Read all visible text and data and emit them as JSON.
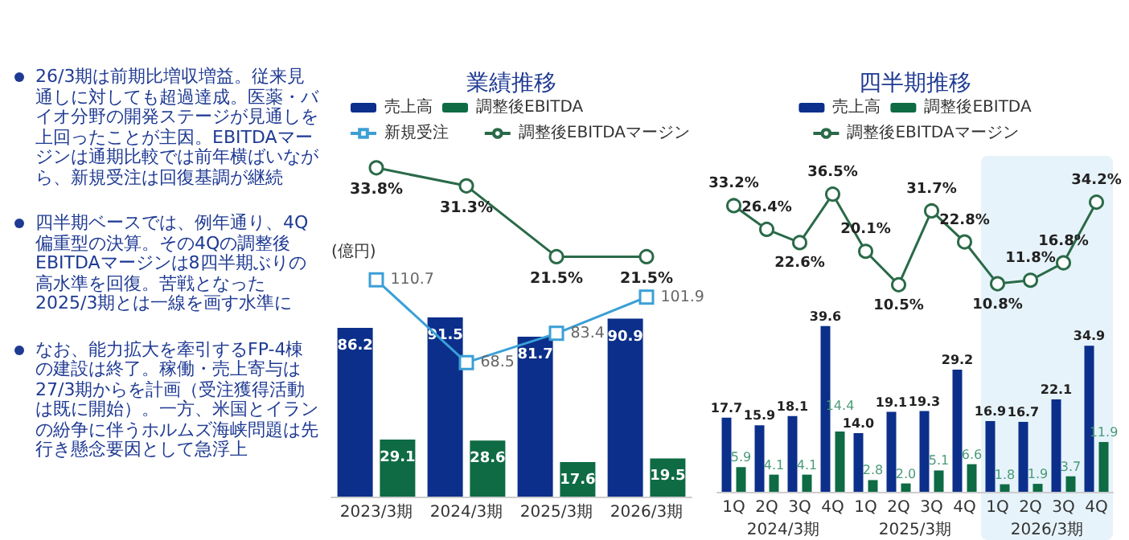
{
  "chart_data": [
    {
      "type": "other",
      "annotations": [
        "26/3期は前期比増収増益。従来見通しに対しても超過達成。医薬・バイオ分野の開発ステージが見通しを上回ったことが主因。EBITDAマージンは通期比較では前年横ばいながら、新規受注は回復基調が継続",
        "四半期ベースでは、例年通り、4Q偏重型の決算。その4Qの調整後EBITDAマージンは8四半期ぶりの高水準を回復。苦戦となった2025/3期とは一線を画す水準に",
        "なお、能力拡大を牽引するFP-4棟の建設は終了。稼働・売上寄与は27/3期からを計画（受注獲得活動は既に開始）。一方、米国とイランの紛争に伴うホルムズ海峡問題は先行き懸念要因として急浮上"
      ]
    },
    {
      "type": "line",
      "title": "業績推移",
      "categories": [
        null,
        null,
        null,
        null
      ],
      "series": [
        {
          "name": "調整後EBITDAマージン",
          "color": "#2a6a48",
          "marker": "circle",
          "values": [
            33.8,
            31.3,
            21.5,
            21.5
          ],
          "value_labels": [
            "33.8%",
            "31.3%",
            "21.5%",
            "21.5%"
          ]
        }
      ],
      "legend": "top right",
      "tick_labels": false
    },
    {
      "type": "bar",
      "ylabel": "(億円)",
      "categories": [
        "2023/3期",
        "2024/3期",
        "2025/3期",
        "2026/3期"
      ],
      "series": [
        {
          "name": "売上高",
          "type": "bar",
          "color": "#0b2f8a",
          "values": [
            86.2,
            91.5,
            81.7,
            90.9
          ]
        },
        {
          "name": "調整後EBITDA",
          "type": "bar",
          "color": "#0e6b44",
          "values": [
            29.1,
            28.6,
            17.6,
            19.5
          ]
        },
        {
          "name": "新規受注",
          "type": "line",
          "color": "#3b9fd6",
          "marker": "square",
          "values": [
            110.7,
            68.5,
            83.4,
            101.9
          ]
        }
      ],
      "data_labels": true,
      "legend": "top left",
      "tick_labels": "x"
    },
    {
      "type": "line",
      "title": "四半期推移",
      "categories": [
        null,
        null,
        null,
        null,
        null,
        null,
        null,
        null,
        null,
        null,
        null,
        null
      ],
      "series": [
        {
          "name": "調整後EBITDAマージン",
          "color": "#2a6a48",
          "marker": "circle",
          "values": [
            33.2,
            26.4,
            22.6,
            36.5,
            20.1,
            10.5,
            31.7,
            22.8,
            10.8,
            11.8,
            16.8,
            34.2
          ],
          "value_labels": [
            "33.2%",
            "26.4%",
            "22.6%",
            "36.5%",
            "20.1%",
            "10.5%",
            "31.7%",
            "22.8%",
            "10.8%",
            "11.8%",
            "16.8%",
            "34.2%"
          ]
        }
      ],
      "legend": "top",
      "tick_labels": false
    },
    {
      "type": "bar",
      "categories": [
        "1Q",
        "2Q",
        "3Q",
        "4Q",
        "1Q",
        "2Q",
        "3Q",
        "4Q",
        "1Q",
        "2Q",
        "3Q",
        "4Q"
      ],
      "annotations": [
        "2024/3期",
        "2025/3期",
        "2026/3期"
      ],
      "series": [
        {
          "name": "売上高",
          "color": "#0b2f8a",
          "values": [
            17.7,
            15.9,
            18.1,
            39.6,
            14.0,
            19.1,
            19.3,
            29.2,
            16.9,
            16.7,
            22.1,
            34.9
          ],
          "value_labels": [
            "17.7",
            "15.9",
            "18.1",
            "39.6",
            "14.0",
            "19.1",
            "19.3",
            "29.2",
            "16.9",
            "16.7",
            "22.1",
            "34.9"
          ]
        },
        {
          "name": "調整後EBITDA",
          "color": "#0e6b44",
          "values": [
            5.9,
            4.1,
            4.1,
            14.4,
            2.8,
            2.0,
            5.1,
            6.6,
            1.8,
            1.9,
            3.7,
            11.9
          ],
          "value_labels": [
            "5.9",
            "4.1",
            "4.1",
            "14.4",
            "2.8",
            "2.0",
            "5.1",
            "6.6",
            "1.8",
            "1.9",
            "3.7",
            "11.9"
          ]
        }
      ],
      "legend": "top",
      "tick_labels": "x"
    }
  ]
}
